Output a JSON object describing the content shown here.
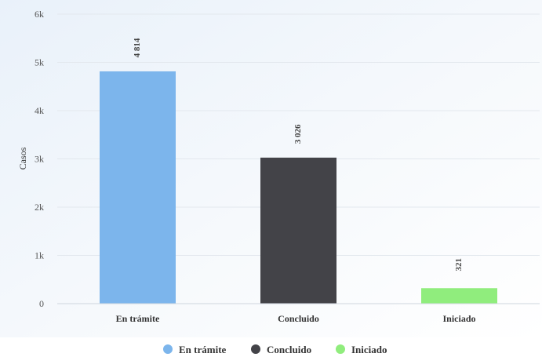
{
  "chart_data": {
    "type": "bar",
    "title": "",
    "xlabel": "",
    "ylabel": "Casos",
    "ylim": [
      0,
      6000
    ],
    "yticks": [
      {
        "value": 0,
        "label": "0"
      },
      {
        "value": 1000,
        "label": "1k"
      },
      {
        "value": 2000,
        "label": "2k"
      },
      {
        "value": 3000,
        "label": "3k"
      },
      {
        "value": 4000,
        "label": "4k"
      },
      {
        "value": 5000,
        "label": "5k"
      },
      {
        "value": 6000,
        "label": "6k"
      }
    ],
    "categories": [
      "En trámite",
      "Concluido",
      "Iniciado"
    ],
    "values": [
      4814,
      3026,
      321
    ],
    "value_labels": [
      "4 814",
      "3 026",
      "321"
    ],
    "colors": [
      "#7cb5ec",
      "#434348",
      "#90ed7d"
    ],
    "grid": true,
    "legend": {
      "position": "bottom-center",
      "items": [
        {
          "label": "En trámite",
          "color": "#7cb5ec"
        },
        {
          "label": "Concluido",
          "color": "#434348"
        },
        {
          "label": "Iniciado",
          "color": "#90ed7d"
        }
      ]
    }
  }
}
